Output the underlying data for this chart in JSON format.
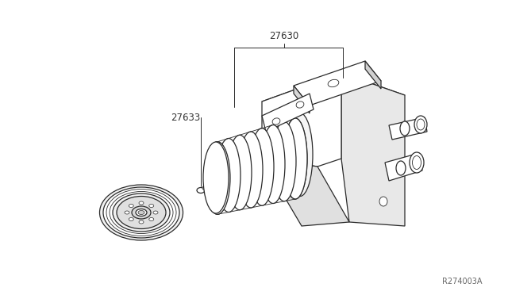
{
  "bg_color": "#ffffff",
  "line_color": "#2a2a2a",
  "text_color": "#222222",
  "label_color": "#333333",
  "part_27630_label": "27630",
  "part_27633_label": "27633",
  "diagram_id": "R274003A",
  "figsize": [
    6.4,
    3.72
  ],
  "dpi": 100,
  "lw_main": 0.9,
  "lw_thin": 0.6,
  "lw_leader": 0.7
}
